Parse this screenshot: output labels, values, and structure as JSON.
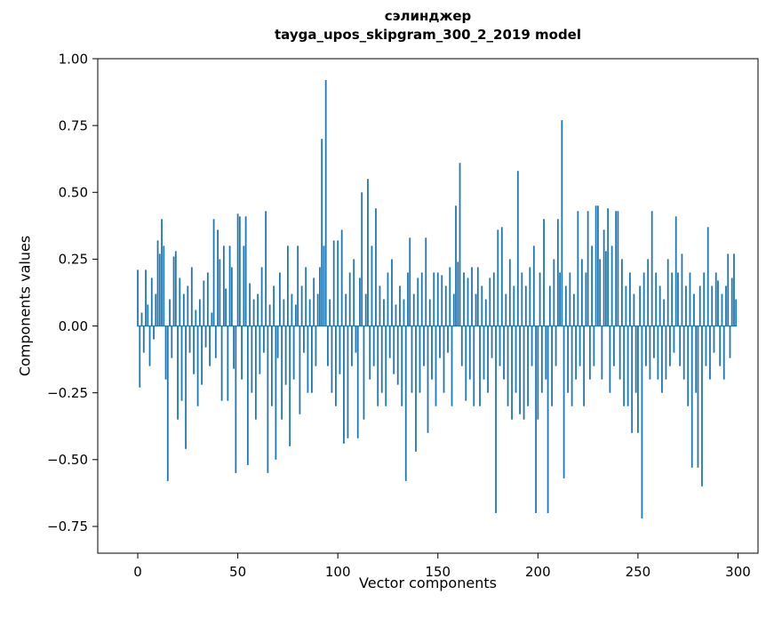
{
  "figure": {
    "title_line1": "сэлинджер",
    "title_line2": "tayga_upos_skipgram_300_2_2019 model",
    "xlabel": "Vector components",
    "ylabel": "Components values",
    "bar_color": "#1f77b4",
    "background": "#ffffff",
    "spine_color": "#000000"
  },
  "chart_data": {
    "type": "bar",
    "title": "сэлинджер — tayga_upos_skipgram_300_2_2019 model",
    "xlabel": "Vector components",
    "ylabel": "Components values",
    "legend": null,
    "grid": false,
    "xlim": [
      -20,
      310
    ],
    "ylim": [
      -0.85,
      1.0
    ],
    "x_ticks": [
      0,
      50,
      100,
      150,
      200,
      250,
      300
    ],
    "y_ticks": [
      1.0,
      0.75,
      0.5,
      0.25,
      0.0,
      -0.25,
      -0.5,
      -0.75
    ],
    "n_components": 300,
    "values": [
      0.21,
      -0.23,
      0.05,
      -0.1,
      0.21,
      0.08,
      -0.15,
      0.18,
      -0.05,
      0.12,
      0.32,
      0.27,
      0.4,
      0.3,
      -0.2,
      -0.58,
      0.1,
      -0.12,
      0.26,
      0.28,
      -0.35,
      0.18,
      -0.28,
      0.12,
      -0.46,
      0.15,
      -0.1,
      0.22,
      -0.18,
      0.06,
      -0.3,
      0.1,
      -0.22,
      0.17,
      -0.08,
      0.2,
      -0.15,
      0.05,
      0.4,
      -0.12,
      0.36,
      0.25,
      -0.28,
      0.3,
      0.14,
      -0.28,
      0.3,
      0.22,
      -0.16,
      -0.55,
      0.42,
      0.41,
      -0.2,
      0.3,
      0.41,
      -0.52,
      0.16,
      -0.25,
      0.1,
      -0.35,
      0.12,
      -0.18,
      0.22,
      -0.1,
      0.43,
      -0.55,
      0.08,
      -0.3,
      0.15,
      -0.5,
      -0.12,
      0.2,
      -0.35,
      0.1,
      -0.22,
      0.3,
      -0.45,
      0.12,
      -0.2,
      0.08,
      0.3,
      -0.33,
      0.15,
      -0.1,
      0.22,
      -0.25,
      0.1,
      -0.25,
      0.18,
      -0.15,
      0.12,
      0.22,
      0.7,
      0.3,
      0.92,
      -0.15,
      0.1,
      -0.25,
      0.32,
      -0.3,
      0.32,
      -0.18,
      0.36,
      -0.44,
      0.12,
      -0.42,
      0.2,
      -0.15,
      0.25,
      -0.1,
      -0.42,
      0.18,
      0.5,
      -0.35,
      0.12,
      0.55,
      -0.2,
      0.3,
      -0.15,
      0.44,
      -0.3,
      0.15,
      -0.25,
      0.1,
      -0.3,
      0.2,
      -0.12,
      0.25,
      -0.18,
      0.08,
      -0.22,
      0.15,
      -0.3,
      0.1,
      -0.58,
      0.2,
      0.33,
      -0.25,
      0.12,
      -0.47,
      0.18,
      -0.25,
      0.2,
      -0.15,
      0.33,
      -0.4,
      0.1,
      -0.2,
      0.2,
      -0.3,
      0.2,
      -0.12,
      0.19,
      -0.25,
      0.15,
      -0.1,
      0.22,
      -0.3,
      0.12,
      0.45,
      0.24,
      0.61,
      -0.15,
      0.2,
      -0.28,
      0.18,
      -0.2,
      0.22,
      -0.3,
      0.12,
      0.22,
      -0.3,
      0.15,
      -0.2,
      0.1,
      -0.25,
      0.18,
      -0.12,
      0.2,
      -0.7,
      0.36,
      -0.15,
      0.37,
      -0.2,
      0.12,
      -0.3,
      0.25,
      -0.35,
      0.15,
      -0.25,
      0.58,
      -0.33,
      0.2,
      -0.35,
      0.15,
      -0.3,
      0.22,
      -0.15,
      0.3,
      -0.7,
      -0.35,
      0.2,
      -0.25,
      0.4,
      -0.2,
      -0.7,
      0.15,
      -0.3,
      0.25,
      -0.15,
      0.4,
      0.2,
      0.77,
      -0.57,
      0.15,
      -0.25,
      0.2,
      -0.3,
      0.12,
      -0.2,
      0.43,
      -0.15,
      0.25,
      -0.3,
      0.2,
      0.43,
      -0.2,
      0.3,
      -0.15,
      0.45,
      0.45,
      0.25,
      -0.2,
      0.36,
      0.28,
      0.44,
      -0.25,
      0.3,
      -0.15,
      0.43,
      0.43,
      -0.2,
      0.25,
      -0.3,
      0.15,
      -0.3,
      0.2,
      -0.4,
      0.12,
      -0.25,
      -0.4,
      0.15,
      -0.72,
      0.2,
      -0.15,
      0.25,
      -0.2,
      0.43,
      -0.12,
      0.2,
      -0.2,
      0.15,
      -0.25,
      0.1,
      -0.2,
      0.25,
      -0.15,
      0.2,
      -0.1,
      0.41,
      0.2,
      -0.15,
      0.27,
      -0.2,
      0.15,
      -0.3,
      0.2,
      -0.53,
      0.12,
      -0.25,
      -0.53,
      0.15,
      -0.6,
      0.2,
      -0.15,
      0.37,
      -0.2,
      0.15,
      -0.1,
      0.2,
      0.17,
      -0.15,
      0.12,
      -0.2,
      0.15,
      0.27,
      -0.12,
      0.18,
      0.27,
      0.1
    ]
  }
}
